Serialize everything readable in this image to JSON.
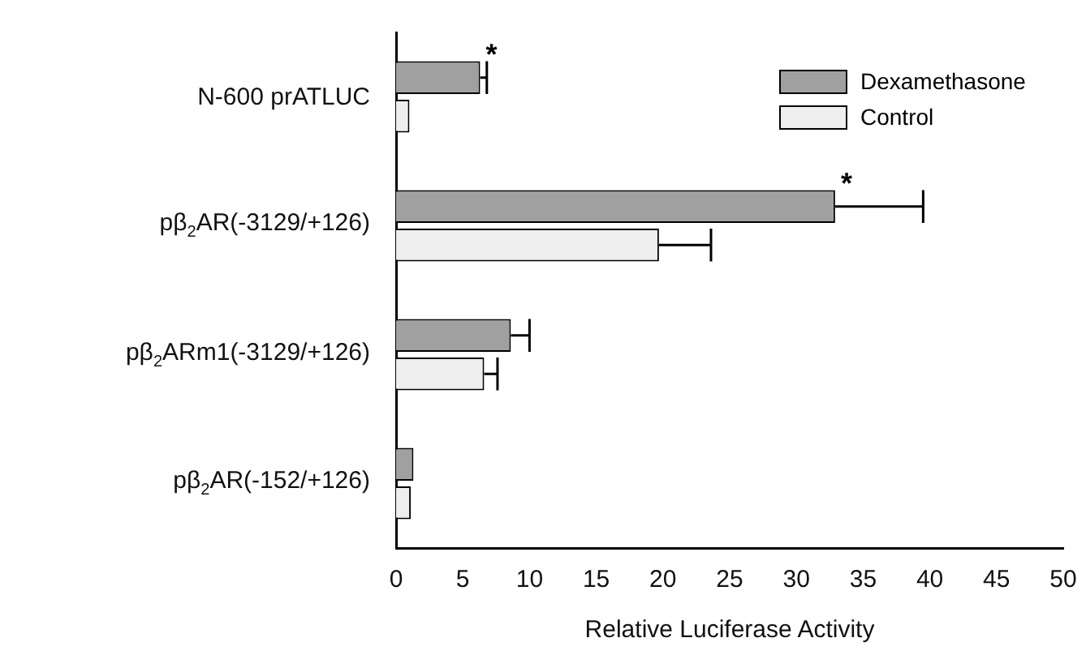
{
  "chart_data": {
    "type": "bar",
    "orientation": "horizontal",
    "xlabel": "Relative Luciferase Activity",
    "categories": [
      "N-600 prATLUC",
      "pβ$_{2}$AR(-3129/+126)",
      "pβ$_{2}$ARm1(-3129/+126)",
      "pβ$_{2}$AR(-152/+126)"
    ],
    "series": [
      {
        "name": "Dexamethasone",
        "color": "#a0a0a0",
        "values": [
          6.3,
          32.9,
          8.6,
          1.3
        ],
        "errors": [
          [
            6.3,
            6.8
          ],
          [
            32.9,
            39.5
          ],
          [
            8.6,
            10.0
          ],
          null
        ]
      },
      {
        "name": "Control",
        "color": "#eeeeee",
        "values": [
          1.0,
          19.7,
          6.6,
          1.1
        ],
        "errors": [
          null,
          [
            19.7,
            23.6
          ],
          [
            6.6,
            7.6
          ],
          null
        ]
      }
    ],
    "xlim": [
      0,
      50
    ],
    "xticks": [
      0,
      5,
      10,
      15,
      20,
      25,
      30,
      35,
      40,
      45,
      50
    ],
    "grid": false,
    "legend": "top right",
    "annotations": [
      {
        "text": "*",
        "x": 6.3,
        "y": "N-600 prATLUC"
      },
      {
        "text": "*",
        "x": 32.9,
        "y": "pβ$_{2}$AR(-3129/+126)"
      }
    ]
  }
}
